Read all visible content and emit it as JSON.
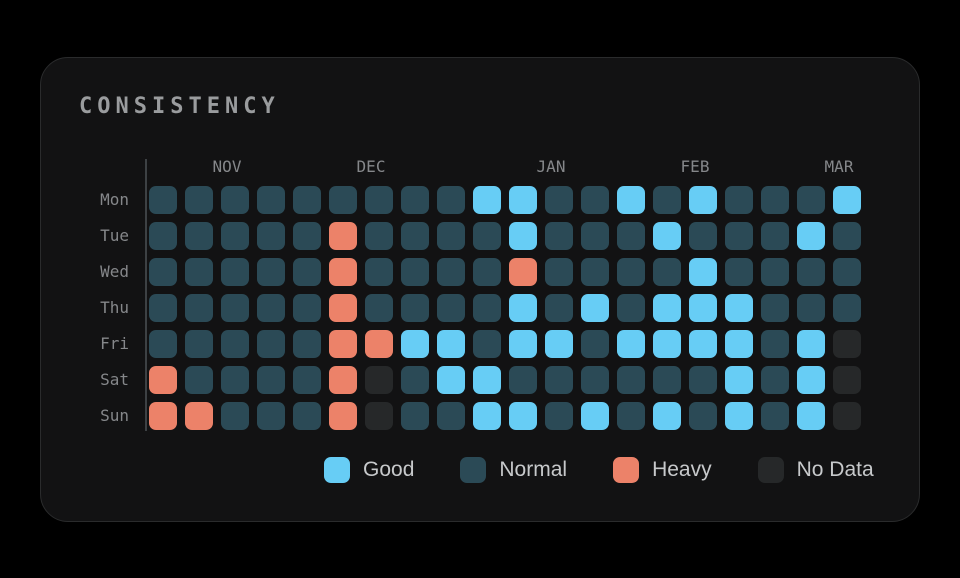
{
  "card": {
    "title": "CONSISTENCY"
  },
  "colors": {
    "good": "#67cdf5",
    "normal": "#2b4a56",
    "heavy": "#ec8269",
    "no_data": "#262829",
    "card_bg": "#121213",
    "page_bg": "#000000",
    "label_gray": "#85878a",
    "legend_text": "#c7c9cb"
  },
  "chart_data": {
    "type": "heatmap",
    "title": "CONSISTENCY",
    "columns": 20,
    "legend_position": "bottom",
    "cell_states": {
      "G": "Good",
      "N": "Normal",
      "H": "Heavy",
      "X": "No Data"
    },
    "cell_colors": {
      "G": "#67cdf5",
      "N": "#2b4a56",
      "H": "#ec8269",
      "X": "#262829"
    },
    "months": [
      {
        "label": "NOV",
        "week": 2
      },
      {
        "label": "DEC",
        "week": 6
      },
      {
        "label": "JAN",
        "week": 11
      },
      {
        "label": "FEB",
        "week": 15
      },
      {
        "label": "MAR",
        "week": 19
      }
    ],
    "rows": [
      {
        "day": "Mon",
        "cells": [
          "N",
          "N",
          "N",
          "N",
          "N",
          "N",
          "N",
          "N",
          "N",
          "G",
          "G",
          "N",
          "N",
          "G",
          "N",
          "G",
          "N",
          "N",
          "N",
          "G"
        ]
      },
      {
        "day": "Tue",
        "cells": [
          "N",
          "N",
          "N",
          "N",
          "N",
          "H",
          "N",
          "N",
          "N",
          "N",
          "G",
          "N",
          "N",
          "N",
          "G",
          "N",
          "N",
          "N",
          "G",
          "N"
        ]
      },
      {
        "day": "Wed",
        "cells": [
          "N",
          "N",
          "N",
          "N",
          "N",
          "H",
          "N",
          "N",
          "N",
          "N",
          "H",
          "N",
          "N",
          "N",
          "N",
          "G",
          "N",
          "N",
          "N",
          "N"
        ]
      },
      {
        "day": "Thu",
        "cells": [
          "N",
          "N",
          "N",
          "N",
          "N",
          "H",
          "N",
          "N",
          "N",
          "N",
          "G",
          "N",
          "G",
          "N",
          "G",
          "G",
          "G",
          "N",
          "N",
          "N"
        ]
      },
      {
        "day": "Fri",
        "cells": [
          "N",
          "N",
          "N",
          "N",
          "N",
          "H",
          "H",
          "G",
          "G",
          "N",
          "G",
          "G",
          "N",
          "G",
          "G",
          "G",
          "G",
          "N",
          "G",
          "X"
        ]
      },
      {
        "day": "Sat",
        "cells": [
          "H",
          "N",
          "N",
          "N",
          "N",
          "H",
          "X",
          "N",
          "G",
          "G",
          "N",
          "N",
          "N",
          "N",
          "N",
          "N",
          "G",
          "N",
          "G",
          "X"
        ]
      },
      {
        "day": "Sun",
        "cells": [
          "H",
          "H",
          "N",
          "N",
          "N",
          "H",
          "X",
          "N",
          "N",
          "G",
          "G",
          "N",
          "G",
          "N",
          "G",
          "N",
          "G",
          "N",
          "G",
          "X"
        ]
      }
    ],
    "legend": [
      {
        "key": "G",
        "label": "Good"
      },
      {
        "key": "N",
        "label": "Normal"
      },
      {
        "key": "H",
        "label": "Heavy"
      },
      {
        "key": "X",
        "label": "No Data"
      }
    ]
  }
}
